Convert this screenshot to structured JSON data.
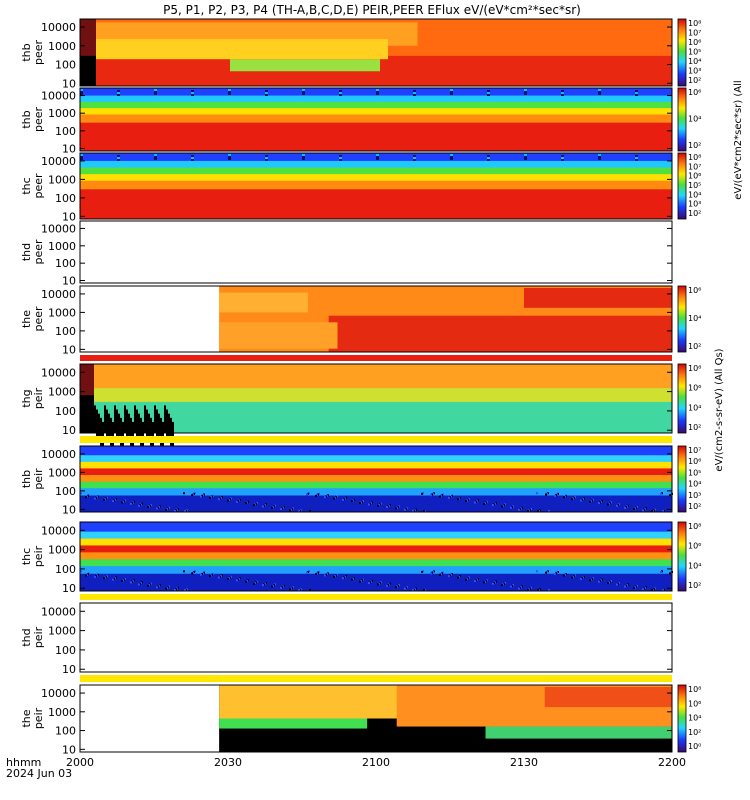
{
  "title": "P5, P1, P2, P3, P4 (TH-A,B,C,D,E) PEIR,PEER EFlux eV/(eV*cm²*sec*sr)",
  "x_axis": {
    "corner_label_line1": "hhmm",
    "corner_label_line2": "2024 Jun 03",
    "ticks": [
      "2000",
      "2030",
      "2100",
      "2130",
      "2200"
    ]
  },
  "colorbar_units_left": "eV/(cm2-s-sr-eV) (All Qs)",
  "colorbar_units_right": "eV/(eV*cm2*sec*sr) (All",
  "colors": {
    "black": "#000000",
    "blue": "#1a3cff",
    "cyan": "#22d6ff",
    "green": "#4cde3c",
    "yellow": "#ffe800",
    "orange": "#ff9a1a",
    "red": "#e81e10",
    "darkred": "#b40808",
    "purple": "#3a0a6e"
  },
  "chart_data": [
    {
      "type": "heatmap",
      "probe": "thb",
      "species": "peer",
      "ylabel": "thb\npeer",
      "state": "tha-peer",
      "yticks": [
        "10000",
        "1000",
        "100",
        "10"
      ],
      "cbar_ticks": [
        "10^8",
        "10^7",
        "10^6",
        "10^5",
        "10^4",
        "10^3",
        "10^2"
      ]
    },
    {
      "type": "heatmap",
      "probe": "thb",
      "species": "peer",
      "ylabel": "thb\npeer",
      "state": "bands-peer",
      "yticks": [
        "10000",
        "1000",
        "100",
        "10"
      ],
      "cbar_ticks": [
        "10^6",
        "10^4",
        "10^2"
      ]
    },
    {
      "type": "heatmap",
      "probe": "thc",
      "species": "peer",
      "ylabel": "thc\npeer",
      "state": "bands-peer",
      "yticks": [
        "10000",
        "1000",
        "100",
        "10"
      ],
      "cbar_ticks": [
        "10^8",
        "10^7",
        "10^6",
        "10^5",
        "10^4",
        "10^3",
        "10^2"
      ]
    },
    {
      "type": "heatmap",
      "probe": "thd",
      "species": "peer",
      "ylabel": "thd\npeer",
      "state": "empty",
      "yticks": [
        "10000",
        "1000",
        "100",
        "10"
      ],
      "cbar_ticks": []
    },
    {
      "type": "heatmap",
      "probe": "the",
      "species": "peer",
      "ylabel": "the\npeer",
      "state": "the-peer",
      "yticks": [
        "10000",
        "1000",
        "100",
        "10"
      ],
      "cbar_ticks": [
        "10^6",
        "10^4",
        "10^2"
      ]
    },
    {
      "type": "heatmap",
      "probe": "thg",
      "species": "peir",
      "ylabel": "thg\npeir",
      "state": "tha-peir",
      "yticks": [
        "10000",
        "1000",
        "100",
        "10"
      ],
      "cbar_ticks": [
        "10^8",
        "10^6",
        "10^4",
        "10^2"
      ]
    },
    {
      "type": "heatmap",
      "probe": "thb",
      "species": "peir",
      "ylabel": "thb\npeir",
      "state": "bands-peir",
      "yticks": [
        "10000",
        "1000",
        "100",
        "10"
      ],
      "cbar_ticks": [
        "10^7",
        "10^6",
        "10^5",
        "10^4",
        "10^3",
        "10^2"
      ]
    },
    {
      "type": "heatmap",
      "probe": "thc",
      "species": "peir",
      "ylabel": "thc\npeir",
      "state": "bands-peir",
      "yticks": [
        "10000",
        "1000",
        "100",
        "10"
      ],
      "cbar_ticks": [
        "10^8",
        "10^6",
        "10^4",
        "10^2"
      ]
    },
    {
      "type": "heatmap",
      "probe": "thd",
      "species": "peir",
      "ylabel": "thd\npeir",
      "state": "empty",
      "yticks": [
        "10000",
        "1000",
        "100",
        "10"
      ],
      "cbar_ticks": []
    },
    {
      "type": "heatmap",
      "probe": "the",
      "species": "peir",
      "ylabel": "the\npeir",
      "state": "the-peir",
      "yticks": [
        "10000",
        "1000",
        "100",
        "10"
      ],
      "cbar_ticks": [
        "10^8",
        "10^6",
        "10^4",
        "10^2",
        "10^0"
      ]
    }
  ]
}
